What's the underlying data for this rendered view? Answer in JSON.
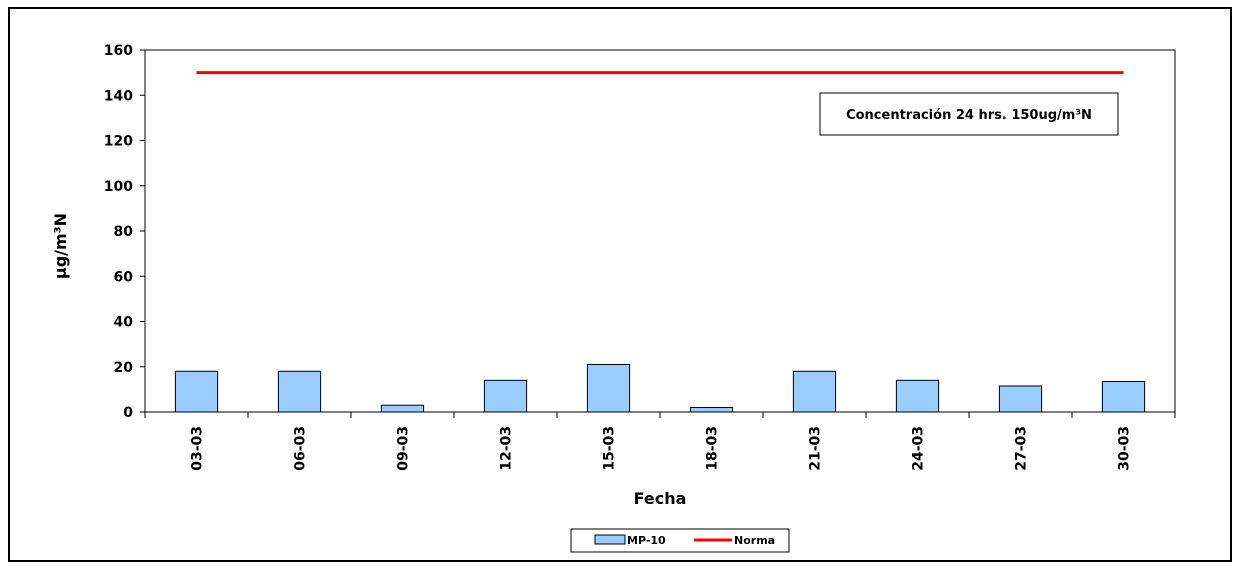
{
  "chart_data": {
    "type": "bar",
    "categories": [
      "03-03",
      "06-03",
      "09-03",
      "12-03",
      "15-03",
      "18-03",
      "21-03",
      "24-03",
      "27-03",
      "30-03"
    ],
    "series": [
      {
        "name": "MP-10",
        "type": "bar",
        "values": [
          18,
          18,
          3,
          14,
          21,
          2,
          18,
          14,
          11.5,
          13.5
        ],
        "color": "#99ccff"
      },
      {
        "name": "Norma",
        "type": "line",
        "values": [
          150,
          150,
          150,
          150,
          150,
          150,
          150,
          150,
          150,
          150
        ],
        "color": "#ff0000"
      }
    ],
    "xlabel": "Fecha",
    "ylabel": "µg/m³N",
    "ylim": [
      0,
      160
    ],
    "yticks": [
      0,
      20,
      40,
      60,
      80,
      100,
      120,
      140,
      160
    ],
    "annotation": "Concentración 24 hrs. 150ug/m³N",
    "legend_position": "bottom",
    "grid": false
  }
}
